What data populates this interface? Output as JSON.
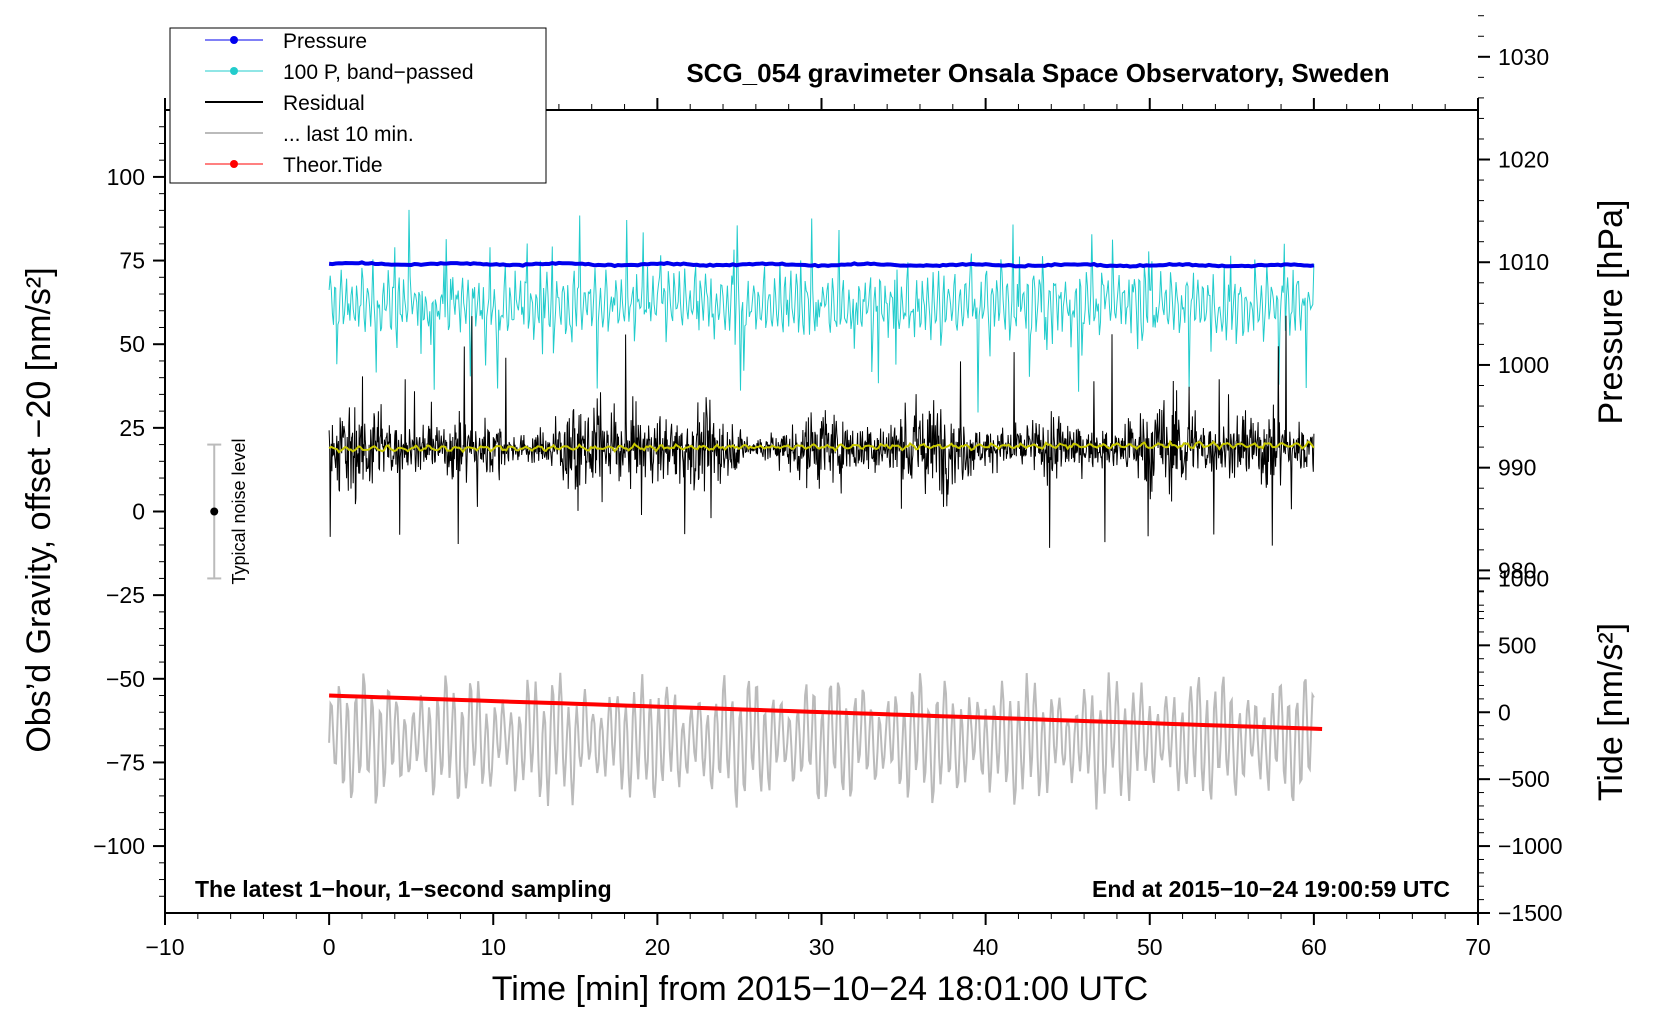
{
  "chart_data": {
    "type": "line",
    "title": "SCG_054 gravimeter Onsala Space Observatory, Sweden",
    "xlabel": "Time [min] from 2015−10−24 18:01:00 UTC",
    "ylabel_left": "Obs’d Gravity, offset −20 [nm/s²]",
    "ylabel_right_top": "Pressure [hPa]",
    "ylabel_right_bottom": "Tide [nm/s²]",
    "xlim": [
      -10,
      70
    ],
    "ylim_left": [
      -120,
      120
    ],
    "x_ticks": [
      -10,
      0,
      10,
      20,
      30,
      40,
      50,
      60,
      70
    ],
    "x_tick_labels": [
      "−10",
      "0",
      "10",
      "20",
      "30",
      "40",
      "50",
      "60",
      "70"
    ],
    "y_left_ticks": [
      100,
      75,
      50,
      25,
      0,
      -25,
      -50,
      -75,
      -100
    ],
    "y_left_tick_labels": [
      "100",
      "75",
      "50",
      "25",
      "0",
      "−25",
      "−50",
      "−75",
      "−100"
    ],
    "pressure_axis": {
      "ticks": [
        1030,
        1020,
        1010,
        1000,
        990,
        980
      ],
      "tick_labels": [
        "1030",
        "1020",
        "1010",
        "1000",
        "990",
        "980"
      ],
      "ref_value": 1010,
      "ref_gravity": 74.5,
      "gravity_per_hPa": 3.07
    },
    "tide_axis": {
      "ticks": [
        1000,
        500,
        0,
        -500,
        -1000,
        -1500
      ],
      "tick_labels": [
        "1000",
        "500",
        "0",
        "−500",
        "−1000",
        "−1500"
      ],
      "ref_value": 0,
      "ref_gravity": -60,
      "gravity_per_unit": 0.04
    },
    "series": [
      {
        "name": "Pressure",
        "legend": "Pressure",
        "color": "#0000ee",
        "style": "line+marker",
        "x_range": [
          0,
          60
        ],
        "level": 1010,
        "start": 74,
        "end": 73.5
      },
      {
        "name": "100 P, band-passed",
        "legend": "100 P, band−passed",
        "color": "#22cccc",
        "style": "line+marker",
        "x_range": [
          0,
          60
        ],
        "center": 62,
        "amplitude": 10
      },
      {
        "name": "Residual",
        "legend": "Residual",
        "color": "#000000",
        "style": "line",
        "x_range": [
          0,
          60
        ],
        "center": 19,
        "amplitude": 12
      },
      {
        "name": "Residual smoothed",
        "legend": "",
        "color": "#c8c800",
        "style": "line",
        "x_range": [
          0,
          60
        ],
        "center": 19.5
      },
      {
        "name": "last 10 min",
        "legend": "... last 10 min.",
        "color": "#bbbbbb",
        "style": "line",
        "x_range": [
          0,
          60
        ],
        "center": -68,
        "amplitude": 15
      },
      {
        "name": "Theor.Tide",
        "legend": "Theor.Tide",
        "color": "#ff0000",
        "style": "line+marker",
        "x_range": [
          0,
          60.5
        ],
        "start": -55,
        "end": -65
      }
    ],
    "noise_level": {
      "label": "Typical noise level",
      "x": -7,
      "center": 0,
      "low": -20,
      "high": 20
    },
    "annotations": {
      "bottom_left": "The latest 1−hour, 1−second sampling",
      "bottom_right": "End at 2015−10−24 19:00:59 UTC"
    },
    "legend_position": "top-left"
  }
}
